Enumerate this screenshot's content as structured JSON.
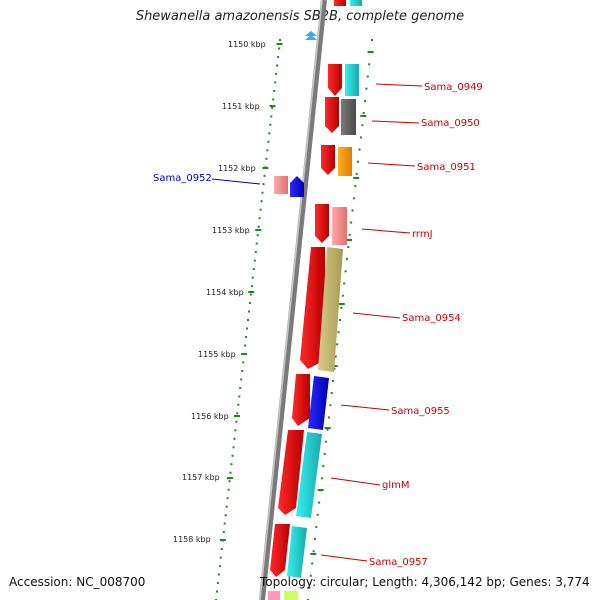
{
  "title": "Shewanella amazonensis SB2B, complete genome",
  "accession": "Accession: NC_008700",
  "topology": "Topology: circular; Length: 4,306,142 bp; Genes: 3,774",
  "scale_labels": [
    "1150 kbp",
    "1151 kbp",
    "1152 kbp",
    "1153 kbp",
    "1154 kbp",
    "1155 kbp",
    "1156 kbp",
    "1157 kbp",
    "1158 kbp"
  ],
  "gene_labels": {
    "right": [
      "Sama_0949",
      "Sama_0950",
      "Sama_0951",
      "rrmJ",
      "Sama_0954",
      "Sama_0955",
      "glmM",
      "Sama_0957"
    ],
    "left": [
      "Sama_0952"
    ]
  },
  "colors": {
    "label_right": "#cc0000",
    "label_left": "#0000cc",
    "scale_dots": "#1a8a1a",
    "axis": "#888888"
  }
}
